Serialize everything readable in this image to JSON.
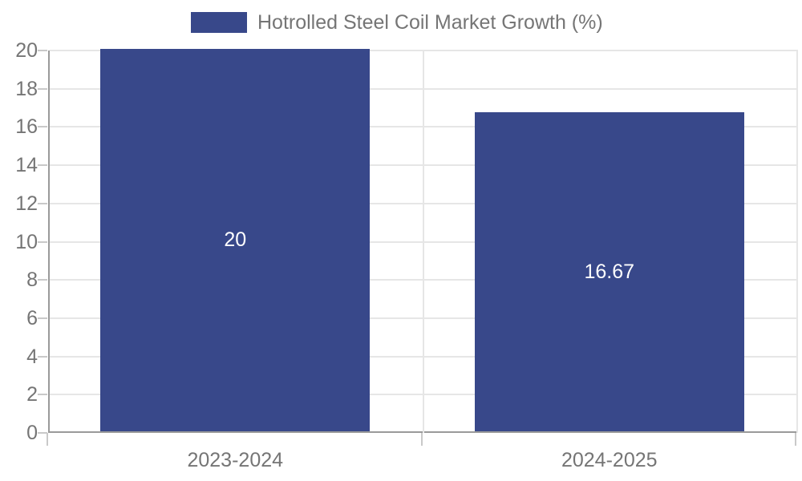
{
  "legend": {
    "items": [
      {
        "label": "Hotrolled Steel Coil Market Growth (%)",
        "color": "#38488A"
      }
    ],
    "position": "top"
  },
  "chart_data": {
    "type": "bar",
    "title": "Hotrolled Steel Coil Market Growth (%)",
    "categories": [
      "2023-2024",
      "2024-2025"
    ],
    "values": [
      20,
      16.67
    ],
    "value_labels": [
      "20",
      "16.67"
    ],
    "xlabel": "",
    "ylabel": "",
    "ylim": [
      0,
      20
    ],
    "yticks": [
      0,
      2,
      4,
      6,
      8,
      10,
      12,
      14,
      16,
      18,
      20
    ],
    "grid": true,
    "legend_position": "top",
    "colors": {
      "bar": "#38488A",
      "value_label": "#ffffff",
      "axis_text": "#757575",
      "axis_line": "#9a9a9a",
      "gridline": "#e6e6e6"
    }
  }
}
